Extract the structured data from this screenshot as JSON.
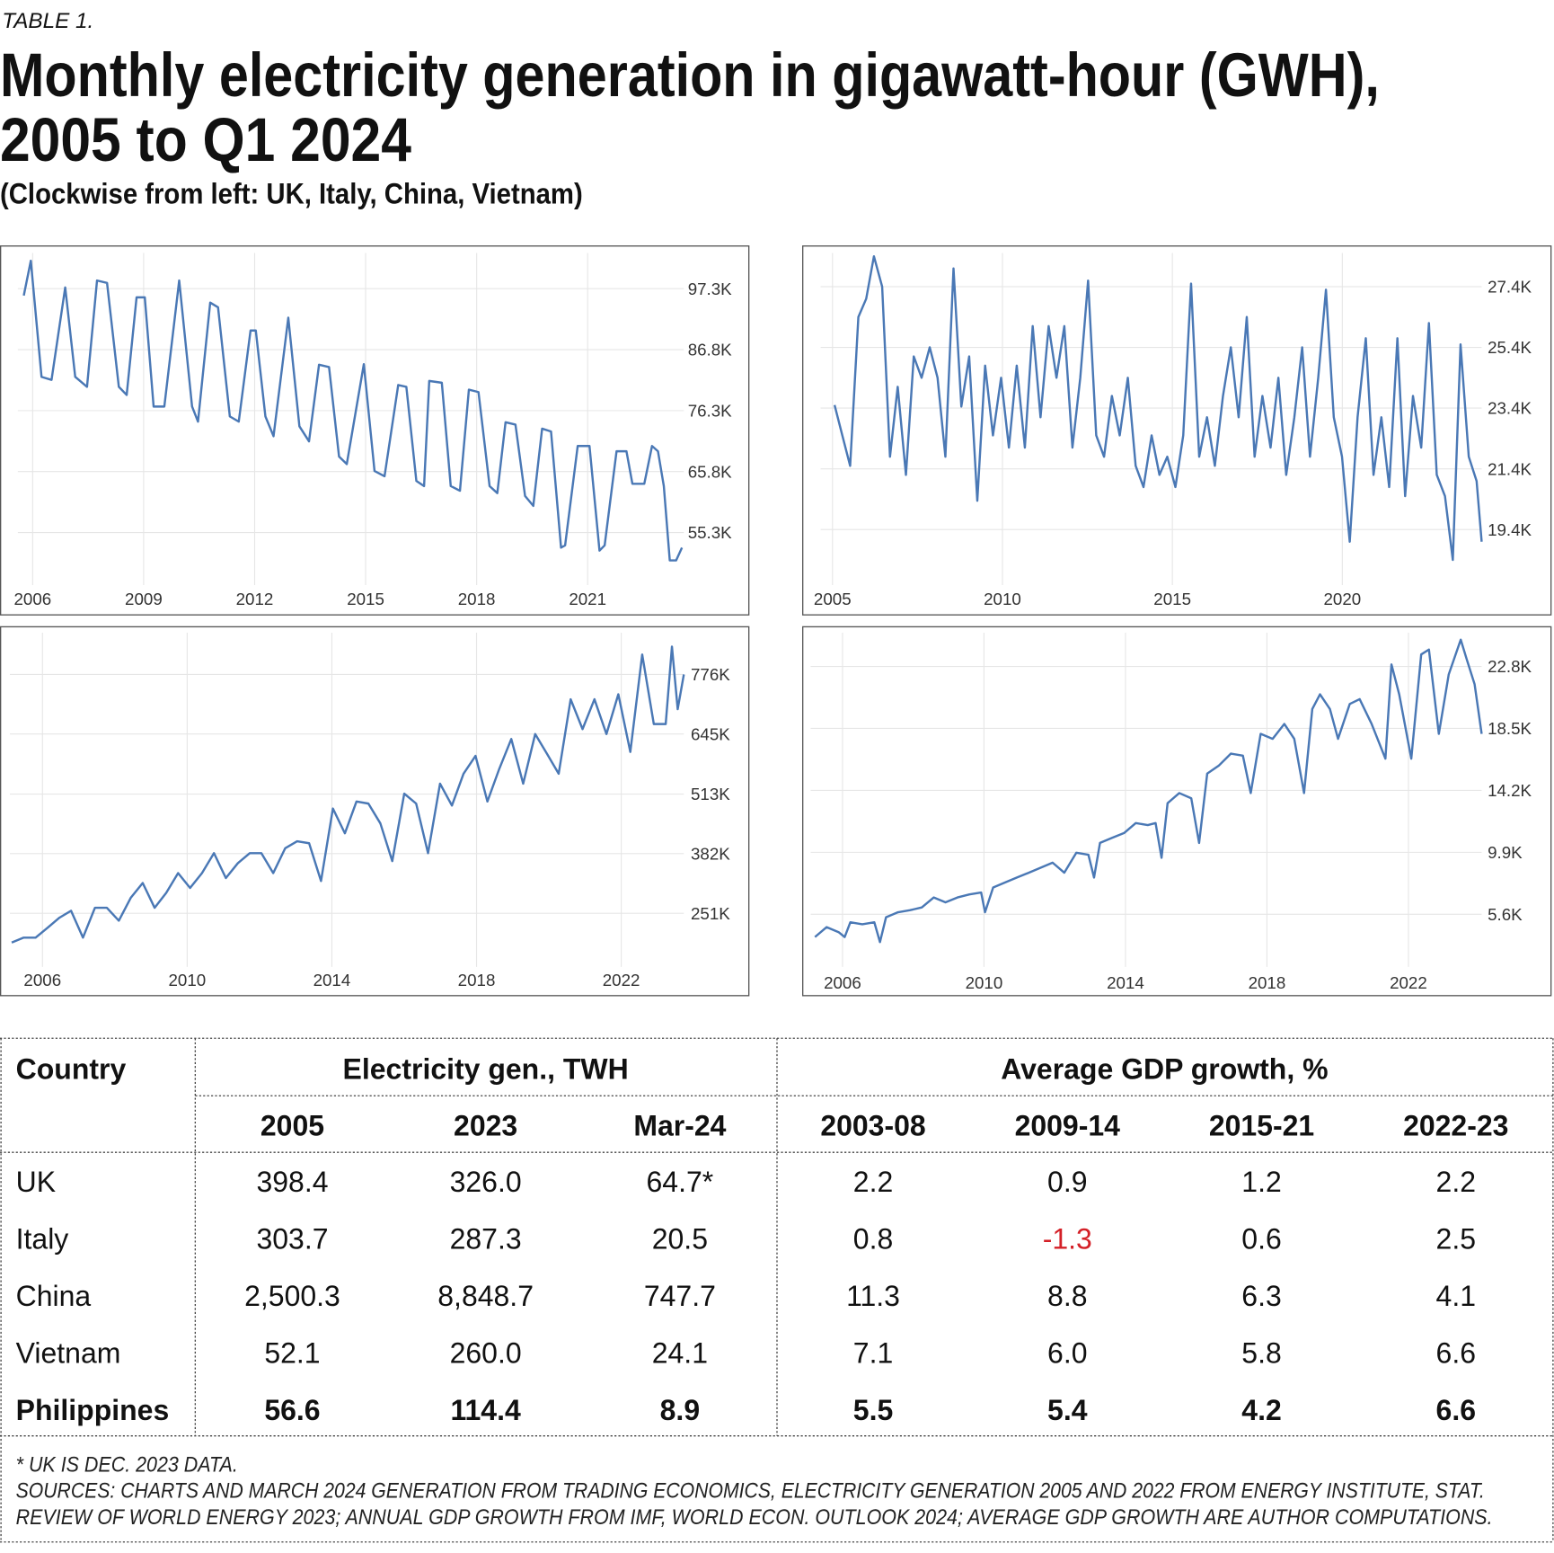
{
  "header": {
    "label": "TABLE 1.",
    "title": [
      "Monthly electricity generation in gigawatt-hour (GWH),",
      "2005 to Q1 2024"
    ],
    "subtitle": "(Clockwise from left: UK, Italy, China, Vietnam)"
  },
  "chart_data": [
    {
      "type": "line",
      "color": "#4a78b5",
      "grid": true,
      "x": [
        2005.76,
        2005.95,
        2006.24,
        2006.51,
        2006.88,
        2007.15,
        2007.47,
        2007.74,
        2008.01,
        2008.33,
        2008.54,
        2008.81,
        2009.03,
        2009.27,
        2009.56,
        2009.96,
        2010.31,
        2010.47,
        2010.8,
        2011.01,
        2011.33,
        2011.57,
        2011.89,
        2012.03,
        2012.29,
        2012.51,
        2012.91,
        2013.21,
        2013.47,
        2013.74,
        2014.01,
        2014.28,
        2014.49,
        2014.95,
        2015.24,
        2015.51,
        2015.88,
        2016.1,
        2016.37,
        2016.58,
        2016.72,
        2017.06,
        2017.3,
        2017.55,
        2017.79,
        2018.05,
        2018.35,
        2018.56,
        2018.78,
        2019.05,
        2019.31,
        2019.53,
        2019.77,
        2020.01,
        2020.28,
        2020.39,
        2020.73,
        2021.05,
        2021.32,
        2021.46,
        2021.78,
        2022.05,
        2022.21,
        2022.53,
        2022.74,
        2022.9,
        2023.06,
        2023.22,
        2023.39,
        2023.55
      ],
      "values": [
        96100,
        102100,
        82100,
        81600,
        97500,
        82100,
        80400,
        98700,
        98300,
        80400,
        79000,
        95800,
        95800,
        77000,
        77000,
        98700,
        77000,
        74400,
        94900,
        94100,
        75300,
        74400,
        90100,
        90100,
        75300,
        71900,
        92300,
        73600,
        71000,
        84200,
        83800,
        68400,
        67100,
        84300,
        65900,
        65000,
        80700,
        80400,
        64200,
        63300,
        81400,
        81100,
        63300,
        62500,
        79900,
        79500,
        63300,
        62100,
        74300,
        73900,
        61600,
        59900,
        73200,
        72700,
        52700,
        53100,
        70200,
        70200,
        52200,
        53100,
        69300,
        69300,
        63700,
        63700,
        70200,
        69300,
        63300,
        50500,
        50500,
        52700
      ],
      "xlim": [
        2005.6,
        2023.6
      ],
      "xticks": [
        2006,
        2009,
        2012,
        2015,
        2018,
        2021
      ],
      "ylim": [
        46250,
        103450
      ],
      "yticks": [
        {
          "value": 97300,
          "label": "97.3K"
        },
        {
          "value": 86800,
          "label": "86.8K"
        },
        {
          "value": 76300,
          "label": "76.3K"
        },
        {
          "value": 65800,
          "label": "65.8K"
        },
        {
          "value": 55300,
          "label": "55.3K"
        }
      ]
    },
    {
      "type": "line",
      "color": "#4a78b5",
      "grid": true,
      "x": [
        2005.06,
        2005.29,
        2005.52,
        2005.76,
        2005.99,
        2006.22,
        2006.46,
        2006.69,
        2006.92,
        2007.16,
        2007.39,
        2007.62,
        2007.86,
        2008.09,
        2008.32,
        2008.56,
        2008.79,
        2009.02,
        2009.26,
        2009.49,
        2009.72,
        2009.96,
        2010.19,
        2010.42,
        2010.66,
        2010.89,
        2011.12,
        2011.36,
        2011.59,
        2011.82,
        2012.06,
        2012.29,
        2012.52,
        2012.76,
        2012.99,
        2013.22,
        2013.45,
        2013.69,
        2013.92,
        2014.15,
        2014.39,
        2014.62,
        2014.85,
        2015.09,
        2015.32,
        2015.55,
        2015.79,
        2016.02,
        2016.25,
        2016.49,
        2016.72,
        2016.95,
        2017.19,
        2017.42,
        2017.65,
        2017.89,
        2018.12,
        2018.35,
        2018.59,
        2018.82,
        2019.05,
        2019.29,
        2019.52,
        2019.75,
        2019.99,
        2020.22,
        2020.45,
        2020.69,
        2020.92,
        2021.15,
        2021.38,
        2021.62,
        2021.85,
        2022.08,
        2022.32,
        2022.55,
        2022.78,
        2023.02,
        2023.25,
        2023.48,
        2023.72,
        2023.95,
        2024.1
      ],
      "values": [
        23500,
        22500,
        21500,
        26400,
        27000,
        28400,
        27400,
        21800,
        24100,
        21200,
        25100,
        24400,
        25400,
        24400,
        21800,
        28000,
        23450,
        25100,
        20350,
        24800,
        22500,
        24400,
        22100,
        24800,
        22100,
        26100,
        23100,
        26100,
        24400,
        26100,
        22100,
        24400,
        27600,
        22500,
        21800,
        23800,
        22500,
        24400,
        21500,
        20800,
        22500,
        21200,
        21800,
        20800,
        22500,
        27500,
        21800,
        23100,
        21500,
        23800,
        25400,
        23100,
        26400,
        21800,
        23800,
        22100,
        24400,
        21200,
        23100,
        25400,
        21800,
        24400,
        27300,
        23100,
        21800,
        19000,
        23100,
        25700,
        21200,
        23100,
        20800,
        25700,
        20500,
        23800,
        22100,
        26200,
        21200,
        20500,
        18400,
        25500,
        21800,
        21000,
        19000
      ],
      "xlim": [
        2004.65,
        2024.1
      ],
      "xticks": [
        2005,
        2010,
        2015,
        2020
      ],
      "ylim": [
        17570,
        28510
      ],
      "yticks": [
        {
          "value": 27400,
          "label": "27.4K"
        },
        {
          "value": 25400,
          "label": "25.4K"
        },
        {
          "value": 23400,
          "label": "23.4K"
        },
        {
          "value": 21400,
          "label": "21.4K"
        },
        {
          "value": 19400,
          "label": "19.4K"
        }
      ]
    },
    {
      "type": "line",
      "color": "#4a78b5",
      "grid": true,
      "x": [
        2005.15,
        2005.48,
        2005.81,
        2006.14,
        2006.47,
        2006.79,
        2007.12,
        2007.45,
        2007.78,
        2008.11,
        2008.44,
        2008.77,
        2009.1,
        2009.42,
        2009.75,
        2010.08,
        2010.41,
        2010.74,
        2011.07,
        2011.4,
        2011.73,
        2012.05,
        2012.38,
        2012.71,
        2013.04,
        2013.37,
        2013.7,
        2014.03,
        2014.36,
        2014.68,
        2015.01,
        2015.34,
        2015.67,
        2016.0,
        2016.33,
        2016.66,
        2016.99,
        2017.32,
        2017.64,
        2017.97,
        2018.3,
        2018.63,
        2018.96,
        2019.29,
        2019.62,
        2019.95,
        2020.27,
        2020.6,
        2020.93,
        2021.26,
        2021.59,
        2021.92,
        2022.25,
        2022.58,
        2022.9,
        2023.23,
        2023.4,
        2023.56,
        2023.73
      ],
      "values": [
        186600,
        197500,
        197500,
        219300,
        241200,
        256400,
        197500,
        263000,
        263000,
        234600,
        284800,
        317600,
        263000,
        295700,
        339400,
        306700,
        339400,
        383100,
        328500,
        361200,
        383100,
        383100,
        339400,
        394000,
        409300,
        404900,
        321900,
        481300,
        426700,
        496600,
        492200,
        448600,
        365600,
        514000,
        492200,
        383100,
        535900,
        487800,
        557700,
        597000,
        496600,
        568600,
        634100,
        535900,
        645000,
        601400,
        557700,
        721400,
        655900,
        721400,
        645000,
        732300,
        605700,
        819700,
        666900,
        666900,
        837100,
        699600,
        776000
      ],
      "xlim": [
        2005.1,
        2023.73
      ],
      "xticks": [
        2006,
        2010,
        2014,
        2018,
        2022
      ],
      "ylim": [
        133100,
        867700
      ],
      "yticks": [
        {
          "value": 776000,
          "label": "776K"
        },
        {
          "value": 645000,
          "label": "645K"
        },
        {
          "value": 513000,
          "label": "513K"
        },
        {
          "value": 382000,
          "label": "382K"
        },
        {
          "value": 251000,
          "label": "251K"
        }
      ]
    },
    {
      "type": "line",
      "color": "#4a78b5",
      "grid": true,
      "x": [
        2005.22,
        2005.55,
        2005.89,
        2006.06,
        2006.22,
        2006.56,
        2006.9,
        2007.06,
        2007.23,
        2007.57,
        2007.9,
        2008.24,
        2008.58,
        2008.91,
        2009.25,
        2009.59,
        2009.92,
        2010.03,
        2010.26,
        2010.59,
        2010.93,
        2011.27,
        2011.6,
        2011.94,
        2012.27,
        2012.61,
        2012.95,
        2013.11,
        2013.28,
        2013.62,
        2013.96,
        2014.29,
        2014.63,
        2014.85,
        2015.02,
        2015.19,
        2015.52,
        2015.86,
        2016.08,
        2016.31,
        2016.64,
        2016.98,
        2017.32,
        2017.54,
        2017.82,
        2018.16,
        2018.49,
        2018.77,
        2019.05,
        2019.28,
        2019.5,
        2019.78,
        2020.01,
        2020.34,
        2020.62,
        2020.96,
        2021.35,
        2021.52,
        2021.74,
        2022.08,
        2022.36,
        2022.58,
        2022.86,
        2023.14,
        2023.48,
        2023.65,
        2023.87,
        2024.07
      ],
      "values": [
        4020,
        4710,
        4360,
        4020,
        5050,
        4910,
        5050,
        3670,
        5390,
        5740,
        5880,
        6080,
        6770,
        6430,
        6770,
        6980,
        7110,
        5740,
        7460,
        7800,
        8150,
        8490,
        8830,
        9180,
        8490,
        9870,
        9730,
        8150,
        10550,
        10900,
        11240,
        11930,
        11790,
        11930,
        9520,
        13310,
        14010,
        13650,
        10550,
        15370,
        15920,
        16750,
        16610,
        14010,
        18120,
        17780,
        18810,
        17780,
        14010,
        19840,
        20870,
        19840,
        17780,
        20190,
        20530,
        18810,
        16400,
        22940,
        20870,
        16400,
        23630,
        23970,
        18120,
        22250,
        24660,
        23280,
        21560,
        18120
      ],
      "xlim": [
        2005.1,
        2024.07
      ],
      "xticks": [
        2006,
        2010,
        2014,
        2018,
        2022
      ],
      "ylim": [
        1950,
        25140
      ],
      "yticks": [
        {
          "value": 22800,
          "label": "22.8K"
        },
        {
          "value": 18500,
          "label": "18.5K"
        },
        {
          "value": 14200,
          "label": "14.2K"
        },
        {
          "value": 9900,
          "label": "9.9K"
        },
        {
          "value": 5600,
          "label": "5.6K"
        }
      ]
    }
  ],
  "table": {
    "header": {
      "country": "Country",
      "groups": [
        "Electricity gen., TWH",
        "Average GDP growth, %"
      ]
    },
    "columns": [
      "2005",
      "2023",
      "Mar-24",
      "2003-08",
      "2009-14",
      "2015-21",
      "2022-23"
    ],
    "rows": [
      [
        "UK",
        "398.4",
        "326.0",
        "64.7*",
        "2.2",
        "0.9",
        "1.2",
        "2.2"
      ],
      [
        "Italy",
        "303.7",
        "287.3",
        "20.5",
        "0.8",
        "-1.3",
        "0.6",
        "2.5"
      ],
      [
        "China",
        "2,500.3",
        "8,848.7",
        "747.7",
        "11.3",
        "8.8",
        "6.3",
        "4.1"
      ],
      [
        "Vietnam",
        "52.1",
        "260.0",
        "24.1",
        "7.1",
        "6.0",
        "5.8",
        "6.6"
      ]
    ],
    "highlight_row": [
      "Philippines",
      "56.6",
      "114.4",
      "8.9",
      "5.5",
      "5.4",
      "4.2",
      "6.6"
    ],
    "negative_color": "#d42027"
  },
  "notes": [
    "* UK IS DEC. 2023 DATA.",
    "SOURCES: CHARTS AND MARCH 2024 GENERATION FROM TRADING ECONOMICS, ELECTRICITY GENERATION 2005 AND 2022 FROM ENERGY INSTITUTE, STAT.",
    "REVIEW OF WORLD ENERGY 2023; ANNUAL GDP GROWTH FROM IMF, WORLD ECON. OUTLOOK 2024; AVERAGE GDP GROWTH ARE AUTHOR COMPUTATIONS."
  ]
}
